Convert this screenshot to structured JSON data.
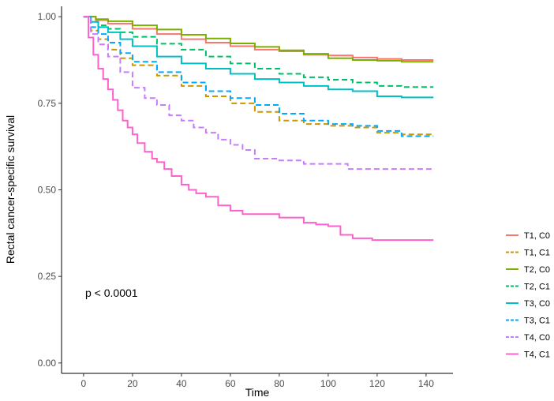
{
  "chart_data": {
    "type": "line",
    "subtype": "kaplan-meier-step",
    "xlabel": "Time",
    "ylabel": "Rectal cancer-specific survival",
    "xlim": [
      -9,
      151
    ],
    "ylim": [
      -0.03,
      1.03
    ],
    "x_ticks": [
      0,
      20,
      40,
      60,
      80,
      100,
      120,
      140
    ],
    "x_tick_labels": [
      "0",
      "20",
      "40",
      "60",
      "80",
      "100",
      "120",
      "140"
    ],
    "y_ticks": [
      0,
      0.25,
      0.5,
      0.75,
      1
    ],
    "y_tick_labels": [
      "0.00",
      "0.25",
      "0.50",
      "0.75",
      "1.00"
    ],
    "grid": false,
    "legend_position": "right",
    "annotation": "p < 0.0001",
    "series": [
      {
        "name": "T1, C0",
        "color": "#f8766d",
        "dash": "solid",
        "x": [
          0,
          5,
          10,
          20,
          30,
          40,
          50,
          60,
          70,
          80,
          90,
          100,
          110,
          120,
          130,
          143
        ],
        "y": [
          1.0,
          0.99,
          0.98,
          0.965,
          0.95,
          0.935,
          0.925,
          0.915,
          0.905,
          0.9,
          0.89,
          0.888,
          0.882,
          0.878,
          0.875,
          0.875
        ]
      },
      {
        "name": "T1, C1",
        "color": "#cd9600",
        "dash": "dashed",
        "x": [
          0,
          3,
          6,
          10,
          15,
          20,
          30,
          40,
          50,
          60,
          70,
          80,
          90,
          100,
          110,
          120,
          130,
          143
        ],
        "y": [
          1.0,
          0.96,
          0.935,
          0.905,
          0.88,
          0.86,
          0.83,
          0.8,
          0.77,
          0.75,
          0.725,
          0.7,
          0.69,
          0.685,
          0.68,
          0.665,
          0.66,
          0.66
        ]
      },
      {
        "name": "T2, C0",
        "color": "#7cae00",
        "dash": "solid",
        "x": [
          0,
          5,
          10,
          20,
          30,
          40,
          50,
          60,
          70,
          80,
          90,
          100,
          110,
          120,
          130,
          143
        ],
        "y": [
          1.0,
          0.993,
          0.987,
          0.975,
          0.963,
          0.948,
          0.937,
          0.923,
          0.913,
          0.903,
          0.893,
          0.88,
          0.875,
          0.873,
          0.87,
          0.87
        ]
      },
      {
        "name": "T2, C1",
        "color": "#00be67",
        "dash": "dashed",
        "x": [
          0,
          3,
          6,
          10,
          15,
          20,
          30,
          40,
          50,
          60,
          70,
          80,
          90,
          100,
          110,
          120,
          130,
          143
        ],
        "y": [
          1.0,
          0.985,
          0.975,
          0.965,
          0.955,
          0.942,
          0.922,
          0.905,
          0.885,
          0.865,
          0.85,
          0.835,
          0.825,
          0.818,
          0.81,
          0.8,
          0.797,
          0.797
        ]
      },
      {
        "name": "T3, C0",
        "color": "#00bfc4",
        "dash": "solid",
        "x": [
          0,
          3,
          6,
          10,
          15,
          20,
          30,
          40,
          50,
          60,
          70,
          80,
          90,
          100,
          110,
          120,
          130,
          143
        ],
        "y": [
          1.0,
          0.985,
          0.97,
          0.955,
          0.935,
          0.915,
          0.885,
          0.865,
          0.85,
          0.835,
          0.82,
          0.81,
          0.8,
          0.79,
          0.785,
          0.77,
          0.767,
          0.767
        ]
      },
      {
        "name": "T3, C1",
        "color": "#00a9ff",
        "dash": "dashed",
        "x": [
          0,
          3,
          6,
          10,
          15,
          20,
          30,
          40,
          50,
          60,
          70,
          80,
          90,
          100,
          110,
          120,
          130,
          143
        ],
        "y": [
          1.0,
          0.97,
          0.95,
          0.925,
          0.895,
          0.87,
          0.84,
          0.81,
          0.785,
          0.765,
          0.745,
          0.72,
          0.7,
          0.69,
          0.685,
          0.67,
          0.655,
          0.655
        ]
      },
      {
        "name": "T4, C0",
        "color": "#c77cff",
        "dash": "dashed",
        "x": [
          0,
          3,
          6,
          10,
          15,
          20,
          25,
          30,
          35,
          40,
          45,
          50,
          55,
          60,
          65,
          70,
          80,
          90,
          100,
          108,
          110,
          130,
          143
        ],
        "y": [
          1.0,
          0.95,
          0.92,
          0.885,
          0.84,
          0.795,
          0.765,
          0.745,
          0.715,
          0.7,
          0.68,
          0.665,
          0.645,
          0.63,
          0.615,
          0.59,
          0.585,
          0.575,
          0.575,
          0.56,
          0.56,
          0.56,
          0.56
        ]
      },
      {
        "name": "T4, C1",
        "color": "#ff61cc",
        "dash": "solid",
        "x": [
          0,
          2,
          4,
          6,
          8,
          10,
          12,
          14,
          16,
          18,
          20,
          22,
          25,
          28,
          30,
          33,
          36,
          40,
          43,
          46,
          50,
          55,
          60,
          65,
          70,
          80,
          90,
          95,
          100,
          105,
          110,
          118,
          120,
          130,
          143
        ],
        "y": [
          1.0,
          0.94,
          0.89,
          0.85,
          0.82,
          0.79,
          0.76,
          0.73,
          0.7,
          0.68,
          0.66,
          0.635,
          0.61,
          0.59,
          0.58,
          0.56,
          0.54,
          0.515,
          0.5,
          0.49,
          0.48,
          0.455,
          0.44,
          0.43,
          0.43,
          0.42,
          0.405,
          0.4,
          0.395,
          0.37,
          0.36,
          0.355,
          0.355,
          0.355,
          0.355
        ]
      }
    ]
  }
}
